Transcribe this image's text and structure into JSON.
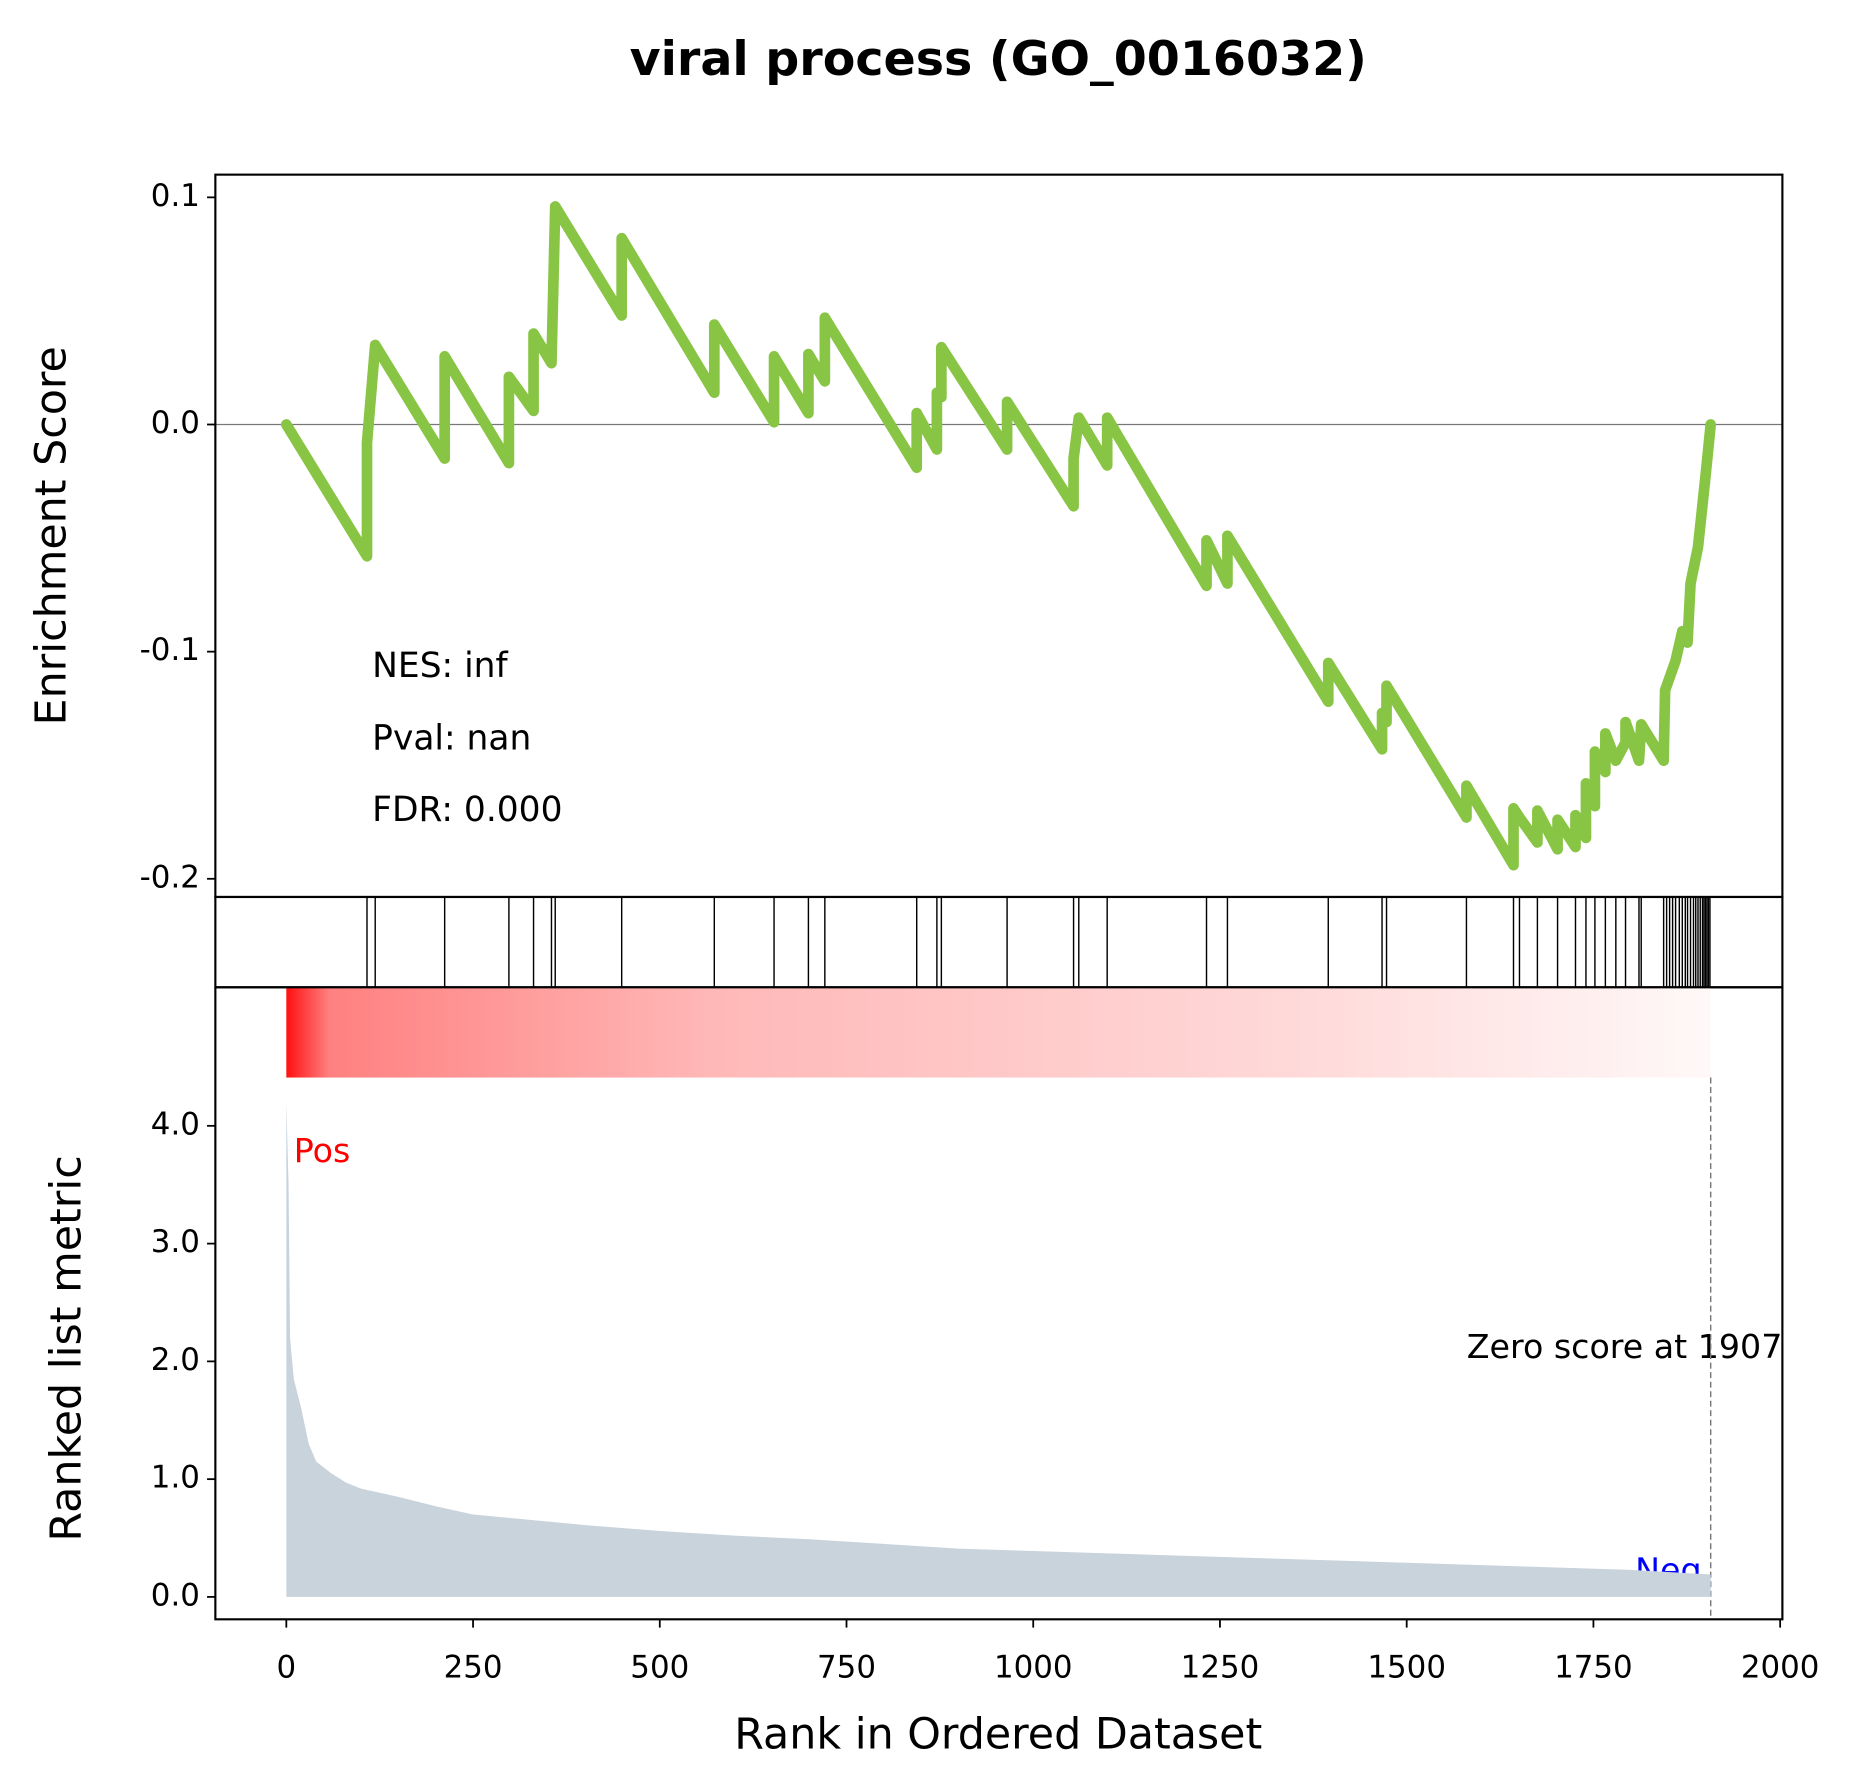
{
  "chart_data": [
    {
      "type": "line",
      "title": "viral process (GO_0016032)",
      "ylabel": "Enrichment Score",
      "annotations": [
        "NES: inf",
        "Pval: nan",
        "FDR: 0.000"
      ],
      "color": "#88c544",
      "x": [
        0,
        108,
        108,
        119,
        212,
        212,
        298,
        298,
        331,
        331,
        355,
        360,
        449,
        449,
        573,
        573,
        653,
        653,
        699,
        699,
        721,
        721,
        844,
        844,
        871,
        871,
        877,
        877,
        965,
        965,
        1054,
        1054,
        1061,
        1099,
        1099,
        1232,
        1232,
        1260,
        1260,
        1395,
        1395,
        1467,
        1467,
        1473,
        1473,
        1580,
        1580,
        1643,
        1643,
        1651,
        1675,
        1675,
        1702,
        1702,
        1726,
        1726,
        1740,
        1740,
        1752,
        1752,
        1766,
        1766,
        1780,
        1793,
        1793,
        1811,
        1814,
        1844,
        1846,
        1860,
        1869,
        1876,
        1880,
        1890,
        1900,
        1907
      ],
      "values": [
        0,
        -0.058,
        -0.008,
        0.035,
        -0.015,
        0.03,
        -0.017,
        0.021,
        0.006,
        0.04,
        0.027,
        0.096,
        0.048,
        0.082,
        0.014,
        0.044,
        0.001,
        0.03,
        0.005,
        0.031,
        0.019,
        0.047,
        -0.019,
        0.005,
        -0.011,
        0.014,
        0.012,
        0.034,
        -0.011,
        0.01,
        -0.036,
        -0.015,
        0.003,
        -0.018,
        0.003,
        -0.071,
        -0.051,
        -0.07,
        -0.049,
        -0.122,
        -0.105,
        -0.143,
        -0.127,
        -0.131,
        -0.115,
        -0.173,
        -0.159,
        -0.194,
        -0.169,
        -0.173,
        -0.184,
        -0.17,
        -0.187,
        -0.174,
        -0.186,
        -0.172,
        -0.182,
        -0.158,
        -0.168,
        -0.144,
        -0.153,
        -0.136,
        -0.148,
        -0.14,
        -0.131,
        -0.148,
        -0.132,
        -0.148,
        -0.117,
        -0.104,
        -0.091,
        -0.096,
        -0.07,
        -0.054,
        -0.023,
        0
      ],
      "xlim": [
        -95,
        2003
      ],
      "ylim": [
        -0.208,
        0.11
      ],
      "yticks": [
        -0.2,
        -0.1,
        {
          "value": 0,
          "label": "0.0"
        },
        0.1
      ],
      "zero_line": true
    },
    {
      "type": "rug",
      "xlim": [
        -95,
        2003
      ],
      "hits": [
        108,
        119,
        212,
        298,
        331,
        355,
        360,
        449,
        573,
        653,
        699,
        721,
        844,
        871,
        877,
        965,
        1054,
        1061,
        1099,
        1232,
        1260,
        1395,
        1467,
        1473,
        1580,
        1643,
        1651,
        1675,
        1702,
        1726,
        1740,
        1752,
        1766,
        1780,
        1793,
        1811,
        1814,
        1844,
        1848,
        1852,
        1856,
        1860,
        1865,
        1869,
        1873,
        1876,
        1880,
        1884,
        1887,
        1890,
        1893,
        1896,
        1898,
        1900,
        1902,
        1904,
        1906
      ]
    },
    {
      "type": "area",
      "ylabel": "Ranked list metric",
      "xlabel": "Rank in Ordered Dataset",
      "color": "#c9d3dc",
      "pos_label": "Pos",
      "neg_label": "Neg",
      "zero_score": {
        "x": 1907,
        "label": "Zero score at 1907"
      },
      "x": [
        0,
        3,
        5,
        10,
        20,
        30,
        40,
        60,
        80,
        100,
        150,
        200,
        250,
        300,
        400,
        500,
        600,
        700,
        800,
        900,
        1000,
        1200,
        1400,
        1500,
        1600,
        1700,
        1800,
        1907
      ],
      "values": [
        4.2,
        3.5,
        2.2,
        1.85,
        1.6,
        1.3,
        1.15,
        1.05,
        0.97,
        0.92,
        0.85,
        0.77,
        0.7,
        0.67,
        0.61,
        0.56,
        0.52,
        0.49,
        0.45,
        0.41,
        0.39,
        0.35,
        0.31,
        0.29,
        0.27,
        0.25,
        0.23,
        0.19
      ],
      "xlim": [
        -95,
        2003
      ],
      "ylim": [
        -0.19,
        4.41
      ],
      "xticks": [
        0,
        250,
        500,
        750,
        1000,
        1250,
        1500,
        1750,
        2000
      ],
      "yticks": [
        {
          "value": 0,
          "label": "0.0"
        },
        {
          "value": 1,
          "label": "1.0"
        },
        {
          "value": 2,
          "label": "2.0"
        },
        {
          "value": 3,
          "label": "3.0"
        },
        {
          "value": 4,
          "label": "4.0"
        }
      ]
    }
  ]
}
